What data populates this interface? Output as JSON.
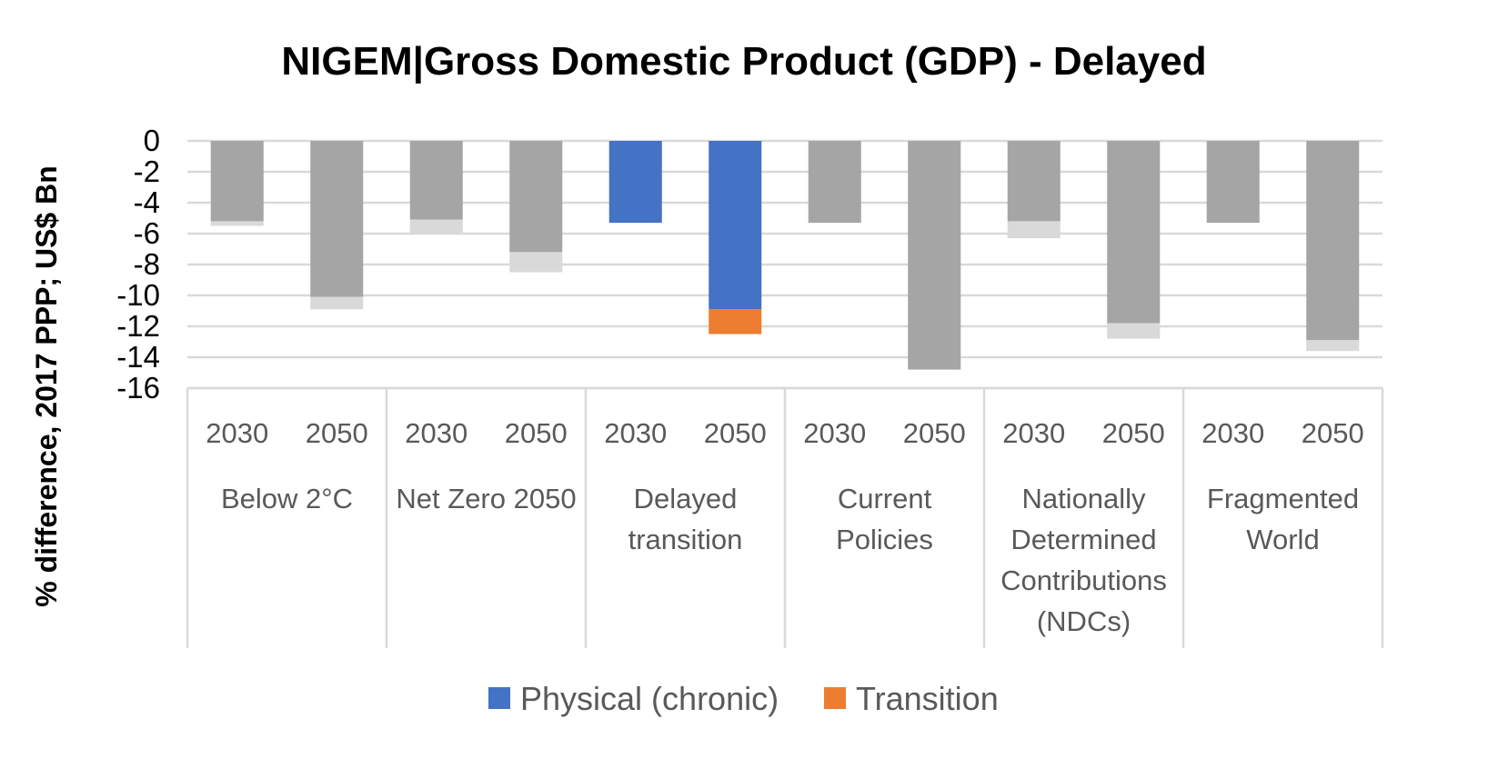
{
  "chart_data": {
    "type": "bar",
    "stacked": true,
    "title": "NIGEM|Gross Domestic Product (GDP) - Delayed",
    "ylabel": "% difference,  2017 PPP; US$ Bn",
    "xlabel": "",
    "ylim": [
      -16,
      0
    ],
    "yticks": [
      0,
      -2,
      -4,
      -6,
      -8,
      -10,
      -12,
      -14,
      -16
    ],
    "grid": true,
    "legend_position": "bottom",
    "groups": [
      {
        "label": [
          "Below 2°C"
        ],
        "years": [
          "2030",
          "2050"
        ]
      },
      {
        "label": [
          "Net Zero 2050"
        ],
        "years": [
          "2030",
          "2050"
        ]
      },
      {
        "label": [
          "Delayed",
          "transition"
        ],
        "years": [
          "2030",
          "2050"
        ]
      },
      {
        "label": [
          "Current",
          "Policies"
        ],
        "years": [
          "2030",
          "2050"
        ]
      },
      {
        "label": [
          "Nationally",
          "Determined",
          "Contributions",
          "(NDCs)"
        ],
        "years": [
          "2030",
          "2050"
        ]
      },
      {
        "label": [
          "Fragmented",
          "World"
        ],
        "years": [
          "2030",
          "2050"
        ]
      }
    ],
    "highlight_index": [
      4,
      5
    ],
    "series": [
      {
        "name": "Physical (chronic)",
        "color": "#4472C4",
        "muted_color": "#A5A5A5",
        "values": [
          -5.2,
          -10.1,
          -5.1,
          -7.2,
          -5.3,
          -10.9,
          -5.3,
          -14.8,
          -5.2,
          -11.8,
          -5.3,
          -12.9
        ]
      },
      {
        "name": "Transition",
        "color": "#ED7D31",
        "muted_color": "#D9D9D9",
        "values": [
          -0.3,
          -0.8,
          -0.9,
          -1.3,
          0.0,
          -1.6,
          0.0,
          0.0,
          -1.1,
          -1.0,
          0.0,
          -0.7
        ]
      }
    ]
  }
}
